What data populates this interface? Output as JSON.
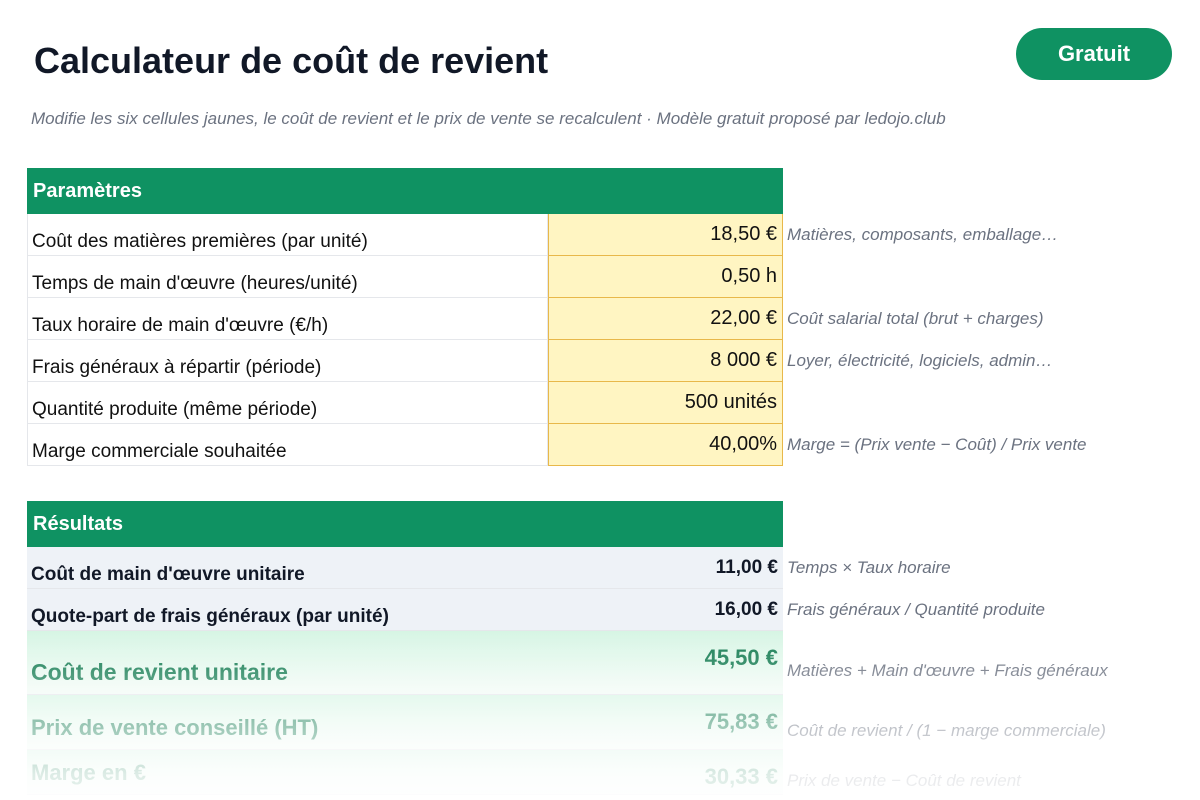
{
  "header": {
    "title": "Calculateur de coût de revient",
    "badge": "Gratuit",
    "subtitle": "Modifie les six cellules jaunes, le coût de revient et le prix de vente se recalculent · Modèle gratuit proposé par ledojo.club"
  },
  "parameters": {
    "title": "Paramètres",
    "rows": [
      {
        "label": "Coût des matières premières (par unité)",
        "value": "18,50 €",
        "note": "Matières, composants, emballage…"
      },
      {
        "label": "Temps de main d'œuvre (heures/unité)",
        "value": "0,50 h"
      },
      {
        "label": "Taux horaire de main d'œuvre (€/h)",
        "value": "22,00 €",
        "note": "Coût salarial total (brut + charges)"
      },
      {
        "label": "Frais généraux à répartir (période)",
        "value": "8 000 €",
        "note": "Loyer, électricité, logiciels, admin…"
      },
      {
        "label": "Quantité produite (même période)",
        "value": "500 unités"
      },
      {
        "label": "Marge commerciale souhaitée",
        "value": "40,00%",
        "note": "Marge = (Prix vente − Coût) / Prix vente"
      }
    ]
  },
  "results": {
    "title": "Résultats",
    "rows": [
      {
        "label": "Coût de main d'œuvre unitaire",
        "value": "11,00 €",
        "note": "Temps × Taux horaire"
      },
      {
        "label": "Quote-part de frais généraux (par unité)",
        "value": "16,00 €",
        "note": "Frais généraux / Quantité produite"
      },
      {
        "label": "Coût de revient unitaire",
        "value": "45,50 €",
        "note": "Matières + Main d'œuvre + Frais généraux"
      },
      {
        "label": "Prix de vente conseillé (HT)",
        "value": "75,83 €",
        "note": "Coût de revient / (1 − marge commerciale)"
      },
      {
        "label": "Marge en €",
        "value": "30,33 €",
        "note": "Prix de vente − Coût de revient"
      }
    ]
  }
}
